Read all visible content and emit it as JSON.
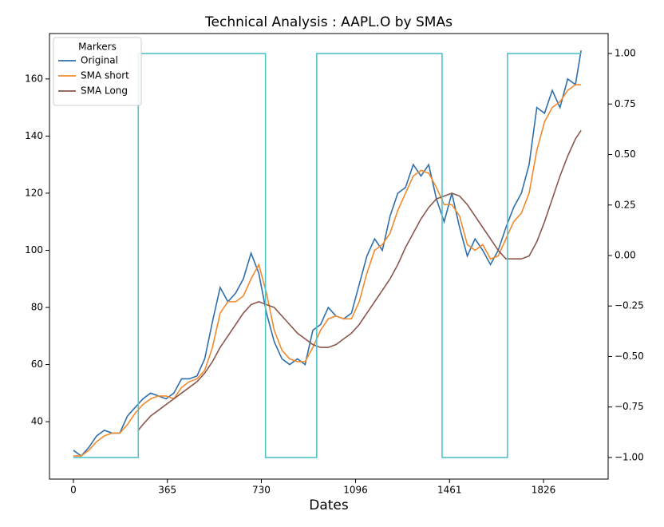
{
  "chart_data": {
    "type": "line",
    "title": "Technical Analysis : AAPL.O by SMAs",
    "x_label": "Dates",
    "legend_title": "Markers",
    "legend_position": "upper left",
    "xlim": [
      -93,
      2077
    ],
    "xticks": [
      0,
      365,
      730,
      1096,
      1461,
      1826
    ],
    "ylim": [
      19.9,
      175.9
    ],
    "yticks": [
      40,
      60,
      80,
      100,
      120,
      140,
      160
    ],
    "y2lim": [
      -1.107,
      1.099
    ],
    "y2ticks": [
      {
        "value": 1,
        "label": "1.00"
      },
      {
        "value": 0.75,
        "label": "0.75"
      },
      {
        "value": 0.5,
        "label": "0.50"
      },
      {
        "value": 0.25,
        "label": "0.25"
      },
      {
        "value": 0,
        "label": "0.00"
      },
      {
        "value": -0.25,
        "label": "−0.25"
      },
      {
        "value": -0.5,
        "label": "−0.50"
      },
      {
        "value": -0.75,
        "label": "−0.75"
      },
      {
        "value": -1,
        "label": "−1.00"
      }
    ],
    "series": [
      {
        "name": "Original",
        "color": "#2f6fac",
        "x": [
          0,
          30,
          60,
          90,
          120,
          150,
          180,
          210,
          240,
          270,
          300,
          330,
          360,
          390,
          420,
          450,
          480,
          510,
          540,
          570,
          600,
          630,
          660,
          690,
          720,
          750,
          780,
          810,
          840,
          870,
          900,
          930,
          960,
          990,
          1020,
          1050,
          1080,
          1110,
          1140,
          1170,
          1200,
          1230,
          1260,
          1290,
          1320,
          1350,
          1380,
          1410,
          1440,
          1470,
          1500,
          1530,
          1560,
          1590,
          1620,
          1650,
          1680,
          1710,
          1740,
          1770,
          1800,
          1830,
          1860,
          1890,
          1920,
          1950,
          1972
        ],
        "values": [
          30,
          28,
          31,
          35,
          37,
          36,
          36,
          42,
          45,
          48,
          50,
          49,
          48,
          50,
          55,
          55,
          56,
          62,
          75,
          87,
          82,
          85,
          90,
          99,
          92,
          78,
          68,
          62,
          60,
          62,
          60,
          72,
          74,
          80,
          77,
          76,
          78,
          88,
          98,
          104,
          100,
          112,
          120,
          122,
          130,
          126,
          130,
          118,
          110,
          120,
          108,
          98,
          104,
          100,
          95,
          100,
          108,
          115,
          120,
          130,
          150,
          148,
          156,
          150,
          160,
          158,
          170
        ]
      },
      {
        "name": "SMA short",
        "color": "#f08a2c",
        "x": [
          0,
          30,
          60,
          90,
          120,
          150,
          180,
          210,
          240,
          270,
          300,
          330,
          360,
          390,
          420,
          450,
          480,
          510,
          540,
          570,
          600,
          630,
          660,
          690,
          720,
          750,
          780,
          810,
          840,
          870,
          900,
          930,
          960,
          990,
          1020,
          1050,
          1080,
          1110,
          1140,
          1170,
          1200,
          1230,
          1260,
          1290,
          1320,
          1350,
          1380,
          1410,
          1440,
          1470,
          1500,
          1530,
          1560,
          1590,
          1620,
          1650,
          1680,
          1710,
          1740,
          1770,
          1800,
          1830,
          1860,
          1890,
          1920,
          1950,
          1972
        ],
        "values": [
          28,
          28,
          30,
          33,
          35,
          36,
          36,
          39,
          43,
          46,
          48,
          49,
          49,
          48,
          52,
          54,
          55,
          58,
          66,
          78,
          82,
          82,
          84,
          90,
          95,
          85,
          72,
          65,
          62,
          61,
          61,
          66,
          72,
          76,
          77,
          76,
          76,
          82,
          92,
          100,
          102,
          106,
          114,
          120,
          126,
          128,
          127,
          122,
          116,
          116,
          112,
          102,
          100,
          102,
          97,
          98,
          104,
          110,
          113,
          120,
          135,
          145,
          150,
          152,
          156,
          158,
          158
        ]
      },
      {
        "name": "SMA Long",
        "color": "#8c564b",
        "x": [
          252,
          270,
          300,
          330,
          360,
          390,
          420,
          450,
          480,
          510,
          540,
          570,
          600,
          630,
          660,
          690,
          720,
          750,
          780,
          810,
          840,
          870,
          900,
          930,
          960,
          990,
          1020,
          1050,
          1080,
          1110,
          1140,
          1170,
          1200,
          1230,
          1260,
          1290,
          1320,
          1350,
          1380,
          1410,
          1440,
          1470,
          1500,
          1530,
          1560,
          1590,
          1620,
          1650,
          1680,
          1710,
          1740,
          1770,
          1800,
          1830,
          1860,
          1890,
          1920,
          1950,
          1972
        ],
        "values": [
          37,
          39,
          42,
          44,
          46,
          48,
          50,
          52,
          54,
          57,
          61,
          66,
          70,
          74,
          78,
          81,
          82,
          81,
          80,
          77,
          74,
          71,
          69,
          67,
          66,
          66,
          67,
          69,
          71,
          74,
          78,
          82,
          86,
          90,
          95,
          101,
          106,
          111,
          115,
          118,
          119,
          120,
          119,
          116,
          112,
          108,
          104,
          100,
          97,
          97,
          97,
          98,
          103,
          110,
          118,
          126,
          133,
          139,
          142
        ]
      },
      {
        "color": "#52c2cb",
        "axis": "y2",
        "x": [
          0,
          252,
          252,
          746,
          746,
          945,
          945,
          1432,
          1432,
          1686,
          1686,
          1972
        ],
        "values": [
          -1,
          -1,
          1,
          1,
          -1,
          -1,
          1,
          1,
          -1,
          -1,
          1,
          1
        ]
      }
    ]
  }
}
